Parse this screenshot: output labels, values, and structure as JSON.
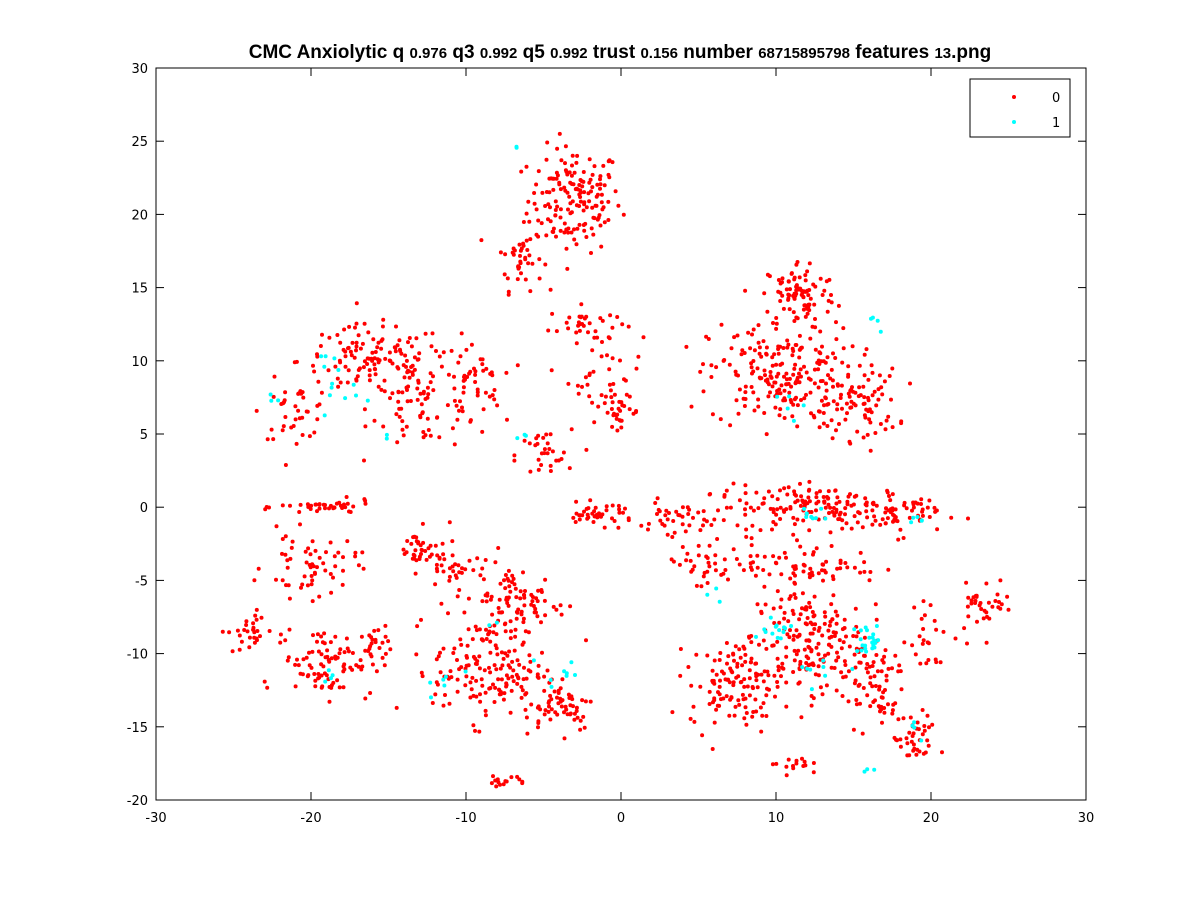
{
  "chart_data": {
    "type": "scatter",
    "title": "CMC Anxiolytic q 0.976 q3 0.992 q5 0.992 trust 0.156 number 68715895798 features 13.png",
    "title_parts": {
      "p1": "CMC Anxiolytic q ",
      "v1": "0.976",
      "p2": " q3 ",
      "v2": "0.992",
      "p3": " q5 ",
      "v3": "0.992",
      "p4": " trust ",
      "v4": "0.156",
      "p5": " number ",
      "v5": "68715895798",
      "p6": " features ",
      "v6": "13",
      "p7": ".png"
    },
    "xlabel": "",
    "ylabel": "",
    "xlim": [
      -30,
      30
    ],
    "ylim": [
      -20,
      30
    ],
    "x_ticks": [
      -30,
      -20,
      -10,
      0,
      10,
      20,
      30
    ],
    "y_ticks": [
      -20,
      -15,
      -10,
      -5,
      0,
      5,
      10,
      15,
      20,
      25,
      30
    ],
    "grid": false,
    "legend_position": "top-right",
    "series": [
      {
        "name": "0",
        "color": "#ff0000",
        "clusters": [
          [
            -3.0,
            21.0,
            2.5,
            3.0,
            160
          ],
          [
            -6.5,
            17.0,
            1.2,
            1.8,
            40
          ],
          [
            -2.5,
            12.5,
            1.8,
            1.0,
            30
          ],
          [
            -1.0,
            9.0,
            2.0,
            2.5,
            40
          ],
          [
            0.0,
            6.5,
            1.0,
            0.8,
            25
          ],
          [
            -16.0,
            10.0,
            4.0,
            2.0,
            130
          ],
          [
            -12.5,
            7.0,
            3.0,
            2.5,
            70
          ],
          [
            -21.0,
            6.5,
            1.8,
            1.5,
            35
          ],
          [
            -9.5,
            8.5,
            1.5,
            2.5,
            40
          ],
          [
            -5.0,
            3.5,
            1.5,
            1.5,
            30
          ],
          [
            11.5,
            14.5,
            2.0,
            2.0,
            90
          ],
          [
            10.5,
            9.0,
            4.0,
            3.0,
            220
          ],
          [
            15.5,
            7.0,
            2.0,
            2.0,
            70
          ],
          [
            13.0,
            0.0,
            6.0,
            1.2,
            170
          ],
          [
            18.0,
            -0.5,
            2.0,
            1.2,
            40
          ],
          [
            4.0,
            -1.0,
            2.5,
            1.2,
            40
          ],
          [
            -1.5,
            -0.5,
            2.0,
            0.6,
            40
          ],
          [
            -19.0,
            0.0,
            2.5,
            0.4,
            40
          ],
          [
            -13.0,
            -3.0,
            1.2,
            1.2,
            35
          ],
          [
            -20.0,
            -4.0,
            2.5,
            1.8,
            60
          ],
          [
            -19.0,
            -10.5,
            2.5,
            2.0,
            90
          ],
          [
            -24.0,
            -8.5,
            1.2,
            1.2,
            30
          ],
          [
            -16.0,
            -10.0,
            1.0,
            1.5,
            20
          ],
          [
            -8.5,
            -11.0,
            3.0,
            3.0,
            160
          ],
          [
            -4.0,
            -13.5,
            2.0,
            1.5,
            60
          ],
          [
            -6.5,
            -6.5,
            2.5,
            2.0,
            80
          ],
          [
            -10.5,
            -4.0,
            1.8,
            2.0,
            40
          ],
          [
            -7.5,
            -18.7,
            1.2,
            0.3,
            15
          ],
          [
            5.0,
            -4.0,
            2.0,
            1.5,
            30
          ],
          [
            7.5,
            -12.0,
            2.5,
            2.5,
            130
          ],
          [
            12.0,
            -9.0,
            3.0,
            3.0,
            170
          ],
          [
            16.0,
            -12.0,
            2.0,
            2.5,
            70
          ],
          [
            19.0,
            -16.0,
            1.2,
            1.5,
            40
          ],
          [
            11.0,
            -17.5,
            1.0,
            0.6,
            15
          ],
          [
            12.0,
            -4.0,
            4.0,
            1.0,
            70
          ],
          [
            23.5,
            -6.5,
            1.5,
            1.5,
            35
          ],
          [
            20.0,
            -9.0,
            1.5,
            2.0,
            25
          ]
        ]
      },
      {
        "name": "1",
        "color": "#00ffff",
        "clusters": [
          [
            16.0,
            -9.0,
            0.8,
            0.8,
            22
          ],
          [
            10.0,
            -8.5,
            1.2,
            1.2,
            14
          ],
          [
            12.5,
            -0.5,
            0.8,
            0.5,
            8
          ],
          [
            19.0,
            -0.8,
            0.4,
            0.3,
            5
          ],
          [
            13.0,
            -11.0,
            1.5,
            1.2,
            8
          ],
          [
            -19.5,
            9.0,
            1.0,
            1.5,
            8
          ],
          [
            -17.5,
            8.0,
            0.8,
            1.0,
            5
          ],
          [
            -22.5,
            7.4,
            0.4,
            0.2,
            3
          ],
          [
            -15.5,
            5.0,
            0.5,
            0.4,
            2
          ],
          [
            -6.5,
            4.8,
            0.5,
            0.3,
            3
          ],
          [
            -3.5,
            -11.0,
            1.2,
            1.0,
            8
          ],
          [
            -11.5,
            -12.0,
            1.0,
            1.5,
            6
          ],
          [
            -19.0,
            -11.5,
            0.5,
            0.5,
            4
          ],
          [
            10.0,
            7.0,
            1.2,
            1.0,
            5
          ],
          [
            16.5,
            12.5,
            0.8,
            0.8,
            4
          ],
          [
            6.0,
            -6.0,
            0.6,
            0.5,
            3
          ],
          [
            16.0,
            -18.0,
            0.5,
            0.2,
            3
          ],
          [
            19.5,
            -15.0,
            1.0,
            0.8,
            4
          ],
          [
            -7.0,
            24.5,
            0.3,
            0.2,
            2
          ],
          [
            -8.5,
            -7.5,
            0.5,
            0.5,
            2
          ]
        ]
      }
    ]
  }
}
